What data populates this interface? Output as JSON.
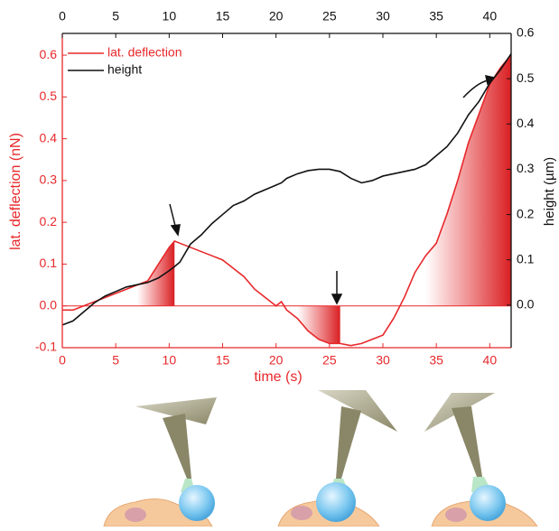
{
  "chart_data": {
    "type": "line",
    "xlabel": "time (s)",
    "ylabel": "lat. deflection (nN)",
    "y2label": "height (µm)",
    "x": [
      0,
      1,
      2,
      3,
      4,
      5,
      6,
      7,
      8,
      9,
      10,
      10.5,
      11,
      12,
      13,
      14,
      15,
      16,
      17,
      18,
      19,
      20,
      20.5,
      21,
      22,
      23,
      24,
      25,
      26,
      27,
      28,
      29,
      30,
      31,
      32,
      33,
      34,
      35,
      36,
      37,
      38,
      39,
      40,
      41,
      42
    ],
    "series": [
      {
        "name": "lat. deflection",
        "color": "#e8282b",
        "axis": "y",
        "values": [
          -0.01,
          -0.01,
          0.0,
          0.01,
          0.02,
          0.03,
          0.04,
          0.05,
          0.06,
          0.1,
          0.14,
          0.155,
          0.15,
          0.14,
          0.13,
          0.12,
          0.11,
          0.09,
          0.07,
          0.04,
          0.02,
          0.0,
          0.01,
          -0.01,
          -0.03,
          -0.06,
          -0.08,
          -0.09,
          -0.09,
          -0.095,
          -0.09,
          -0.08,
          -0.07,
          -0.03,
          0.02,
          0.08,
          0.12,
          0.15,
          0.22,
          0.3,
          0.39,
          0.46,
          0.53,
          0.57,
          0.6
        ]
      },
      {
        "name": "height",
        "color": "#111111",
        "axis": "y2",
        "values": [
          -0.044,
          -0.035,
          -0.015,
          0.005,
          0.02,
          0.03,
          0.04,
          0.045,
          0.05,
          0.06,
          0.076,
          0.085,
          0.095,
          0.135,
          0.155,
          0.18,
          0.2,
          0.22,
          0.23,
          0.245,
          0.255,
          0.265,
          0.27,
          0.28,
          0.29,
          0.297,
          0.3,
          0.3,
          0.295,
          0.28,
          0.27,
          0.275,
          0.285,
          0.29,
          0.295,
          0.3,
          0.31,
          0.33,
          0.35,
          0.38,
          0.42,
          0.45,
          0.49,
          0.52,
          0.555
        ]
      }
    ],
    "shaded_ranges": [
      [
        7,
        10.5
      ],
      [
        22,
        26
      ],
      [
        34,
        42
      ]
    ],
    "xlim": [
      0,
      42
    ],
    "xticks": [
      0,
      5,
      10,
      15,
      20,
      25,
      30,
      35,
      40
    ],
    "x2ticks": [
      0,
      5,
      10,
      15,
      20,
      25,
      30,
      35,
      40
    ],
    "ylim": [
      -0.1,
      0.652
    ],
    "yticks": [
      -0.1,
      0.0,
      0.1,
      0.2,
      0.3,
      0.4,
      0.5,
      0.6
    ],
    "y2lim": [
      -0.094,
      0.6
    ],
    "y2ticks": [
      0.0,
      0.1,
      0.2,
      0.3,
      0.4,
      0.5,
      0.6
    ],
    "legend": "upper-left"
  }
}
